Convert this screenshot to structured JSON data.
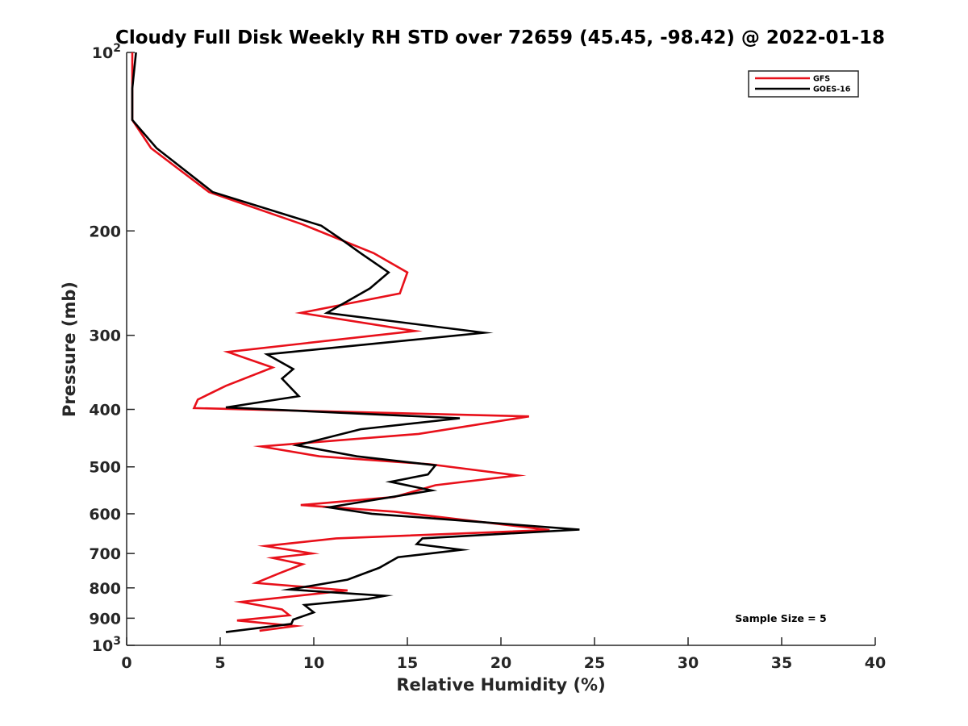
{
  "chart_data": {
    "type": "line",
    "title": "Cloudy Full Disk Weekly RH STD over 72659 (45.45, -98.42) @ 2022-01-18",
    "xlabel": "Relative Humidity (%)",
    "ylabel": "Pressure (mb)",
    "xlim": [
      0,
      40
    ],
    "ylim": [
      100,
      1000
    ],
    "y_scale": "log",
    "y_reversed": true,
    "grid": false,
    "legend_position": "top-right",
    "x_ticks": [
      "0",
      "5",
      "10",
      "15",
      "20",
      "25",
      "30",
      "35",
      "40"
    ],
    "y_ticks": [
      {
        "value": 100,
        "base": "10",
        "exp": "2"
      },
      {
        "value": 200,
        "label": "200"
      },
      {
        "value": 300,
        "label": "300"
      },
      {
        "value": 400,
        "label": "400"
      },
      {
        "value": 500,
        "label": "500"
      },
      {
        "value": 600,
        "label": "600"
      },
      {
        "value": 700,
        "label": "700"
      },
      {
        "value": 800,
        "label": "800"
      },
      {
        "value": 900,
        "label": "900"
      },
      {
        "value": 1000,
        "base": "10",
        "exp": "3"
      }
    ],
    "annotation": "Sample Size = 5",
    "series": [
      {
        "name": "GFS",
        "color": "#e8101a",
        "points": [
          [
            0.3,
            100
          ],
          [
            0.3,
            115
          ],
          [
            0.3,
            130
          ],
          [
            1.3,
            145
          ],
          [
            4.4,
            172
          ],
          [
            9.4,
            195
          ],
          [
            13.2,
            218
          ],
          [
            15.0,
            235
          ],
          [
            14.6,
            255
          ],
          [
            9.3,
            275
          ],
          [
            15.4,
            295
          ],
          [
            5.4,
            320
          ],
          [
            7.8,
            340
          ],
          [
            5.3,
            365
          ],
          [
            3.8,
            385
          ],
          [
            3.6,
            398
          ],
          [
            21.5,
            411
          ],
          [
            15.6,
            440
          ],
          [
            7.2,
            462
          ],
          [
            10.3,
            480
          ],
          [
            16.2,
            495
          ],
          [
            20.9,
            517
          ],
          [
            16.5,
            537
          ],
          [
            14.3,
            562
          ],
          [
            9.3,
            580
          ],
          [
            14.3,
            595
          ],
          [
            22.6,
            639
          ],
          [
            11.2,
            660
          ],
          [
            7.4,
            680
          ],
          [
            9.9,
            700
          ],
          [
            7.8,
            712
          ],
          [
            9.4,
            730
          ],
          [
            8.2,
            755
          ],
          [
            6.9,
            785
          ],
          [
            11.8,
            808
          ],
          [
            6.1,
            845
          ],
          [
            8.3,
            870
          ],
          [
            8.7,
            890
          ],
          [
            5.9,
            908
          ],
          [
            9.0,
            928
          ],
          [
            7.1,
            945
          ]
        ]
      },
      {
        "name": "GOES-16",
        "color": "#000000",
        "points": [
          [
            0.5,
            100
          ],
          [
            0.3,
            115
          ],
          [
            0.3,
            130
          ],
          [
            1.6,
            145
          ],
          [
            4.6,
            172
          ],
          [
            10.4,
            196
          ],
          [
            11.5,
            207
          ],
          [
            12.5,
            218
          ],
          [
            14.0,
            235
          ],
          [
            13.0,
            250
          ],
          [
            10.7,
            275
          ],
          [
            19.1,
            297
          ],
          [
            7.5,
            323
          ],
          [
            8.9,
            342
          ],
          [
            8.3,
            355
          ],
          [
            9.2,
            380
          ],
          [
            5.3,
            397
          ],
          [
            17.8,
            414
          ],
          [
            12.5,
            432
          ],
          [
            9.1,
            460
          ],
          [
            12.3,
            480
          ],
          [
            16.5,
            497
          ],
          [
            16.1,
            515
          ],
          [
            14.1,
            530
          ],
          [
            16.3,
            548
          ],
          [
            10.8,
            585
          ],
          [
            13.1,
            600
          ],
          [
            24.2,
            638
          ],
          [
            15.8,
            660
          ],
          [
            15.5,
            675
          ],
          [
            17.9,
            690
          ],
          [
            14.5,
            710
          ],
          [
            13.5,
            740
          ],
          [
            11.8,
            775
          ],
          [
            8.7,
            805
          ],
          [
            13.8,
            825
          ],
          [
            12.9,
            835
          ],
          [
            9.5,
            855
          ],
          [
            10.0,
            880
          ],
          [
            8.9,
            905
          ],
          [
            8.8,
            920
          ],
          [
            5.3,
            950
          ]
        ]
      }
    ]
  }
}
